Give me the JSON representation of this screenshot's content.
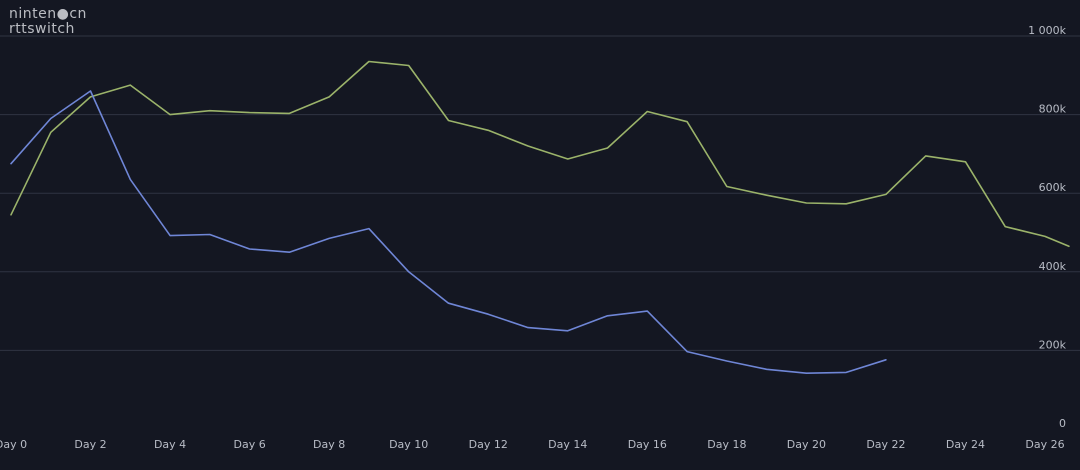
{
  "watermark": {
    "line1": "ninten●cn",
    "line2": "rttswitch"
  },
  "colors": {
    "background": "#141722",
    "grid": "#2f3442",
    "tick_text": "#b8bcc6",
    "series_green": "#9bb36a",
    "series_blue": "#6f86d6"
  },
  "chart_data": {
    "type": "line",
    "title": "",
    "xlabel": "",
    "ylabel": "",
    "xlim": [
      0,
      26.6
    ],
    "ylim": [
      0,
      1000000
    ],
    "y_axis_position": "right",
    "grid": "horizontal",
    "legend": "none",
    "x_ticks": [
      {
        "value": 0,
        "label": "Day 0"
      },
      {
        "value": 2,
        "label": "Day 2"
      },
      {
        "value": 4,
        "label": "Day 4"
      },
      {
        "value": 6,
        "label": "Day 6"
      },
      {
        "value": 8,
        "label": "Day 8"
      },
      {
        "value": 10,
        "label": "Day 10"
      },
      {
        "value": 12,
        "label": "Day 12"
      },
      {
        "value": 14,
        "label": "Day 14"
      },
      {
        "value": 16,
        "label": "Day 16"
      },
      {
        "value": 18,
        "label": "Day 18"
      },
      {
        "value": 20,
        "label": "Day 20"
      },
      {
        "value": 22,
        "label": "Day 22"
      },
      {
        "value": 24,
        "label": "Day 24"
      },
      {
        "value": 26,
        "label": "Day 26"
      }
    ],
    "y_ticks": [
      {
        "value": 0,
        "label": "0"
      },
      {
        "value": 200000,
        "label": "200k"
      },
      {
        "value": 400000,
        "label": "400k"
      },
      {
        "value": 600000,
        "label": "600k"
      },
      {
        "value": 800000,
        "label": "800k"
      },
      {
        "value": 1000000,
        "label": "1 000k"
      }
    ],
    "series": [
      {
        "color": "#9bb36a",
        "points": [
          [
            0,
            545000
          ],
          [
            1,
            755000
          ],
          [
            2,
            845000
          ],
          [
            3,
            875000
          ],
          [
            4,
            800000
          ],
          [
            5,
            810000
          ],
          [
            6,
            805000
          ],
          [
            7,
            803000
          ],
          [
            8,
            845000
          ],
          [
            9,
            935000
          ],
          [
            10,
            925000
          ],
          [
            11,
            785000
          ],
          [
            12,
            760000
          ],
          [
            13,
            720000
          ],
          [
            14,
            687000
          ],
          [
            15,
            715000
          ],
          [
            16,
            808000
          ],
          [
            17,
            782000
          ],
          [
            18,
            617000
          ],
          [
            19,
            595000
          ],
          [
            20,
            575000
          ],
          [
            21,
            573000
          ],
          [
            22,
            597000
          ],
          [
            23,
            695000
          ],
          [
            24,
            680000
          ],
          [
            25,
            515000
          ],
          [
            26,
            490000
          ],
          [
            26.6,
            465000
          ]
        ]
      },
      {
        "color": "#6f86d6",
        "points": [
          [
            0,
            675000
          ],
          [
            1,
            790000
          ],
          [
            2,
            860000
          ],
          [
            3,
            635000
          ],
          [
            4,
            492000
          ],
          [
            5,
            495000
          ],
          [
            6,
            458000
          ],
          [
            7,
            450000
          ],
          [
            8,
            485000
          ],
          [
            9,
            510000
          ],
          [
            10,
            400000
          ],
          [
            11,
            320000
          ],
          [
            12,
            292000
          ],
          [
            13,
            258000
          ],
          [
            14,
            250000
          ],
          [
            15,
            288000
          ],
          [
            16,
            300000
          ],
          [
            17,
            197000
          ],
          [
            18,
            173000
          ],
          [
            19,
            152000
          ],
          [
            20,
            142000
          ],
          [
            21,
            144000
          ],
          [
            22,
            176000
          ]
        ]
      }
    ]
  }
}
